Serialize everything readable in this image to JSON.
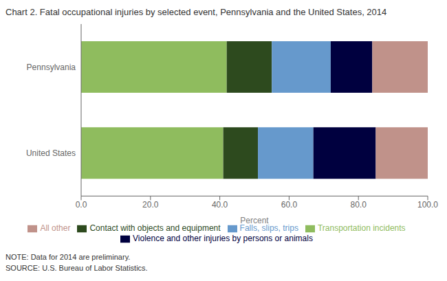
{
  "chart_data": {
    "type": "bar",
    "orientation": "horizontal",
    "stacked": true,
    "title": "Chart 2. Fatal occupational injuries by selected event, Pennsylvania and the United States, 2014",
    "categories": [
      "United States",
      "Pennsylvania"
    ],
    "series": [
      {
        "name": "Transportation incidents",
        "color": "#8fbc5e",
        "values": [
          41.0,
          42.0
        ]
      },
      {
        "name": "Contact with objects and equipment",
        "color": "#2d4a1e",
        "values": [
          10.0,
          13.0
        ]
      },
      {
        "name": "Falls, slips, trips",
        "color": "#6699cc",
        "values": [
          16.0,
          17.0
        ]
      },
      {
        "name": "Violence and other injuries by persons or animals",
        "color": "#00003f",
        "values": [
          18.0,
          12.0
        ]
      },
      {
        "name": "All other",
        "color": "#c0928a",
        "values": [
          15.0,
          16.0
        ]
      }
    ],
    "xlabel": "Percent",
    "xlim": [
      0,
      100
    ],
    "xticks": [
      {
        "value": 0,
        "label": "0.0"
      },
      {
        "value": 20,
        "label": "20.0"
      },
      {
        "value": 40,
        "label": "40.0"
      },
      {
        "value": 60,
        "label": "60.0"
      },
      {
        "value": 80,
        "label": "80.0"
      },
      {
        "value": 100,
        "label": "100.0"
      }
    ],
    "annotations": [
      "NOTE: Data for 2014 are preliminary.",
      "SOURCE: U.S. Bureau of Labor Statistics."
    ],
    "legend": "bottom",
    "grid": false
  }
}
